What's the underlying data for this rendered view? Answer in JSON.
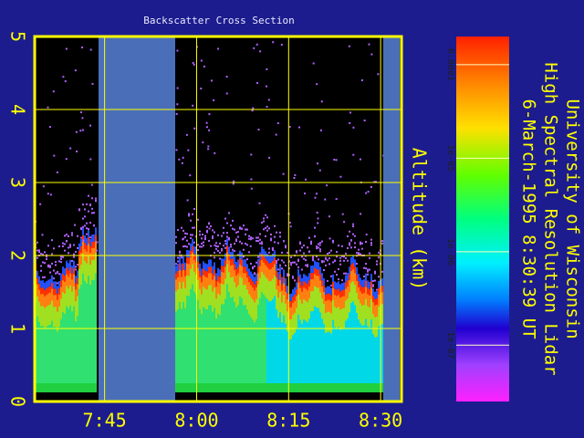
{
  "chart_data": {
    "type": "heatmap",
    "title": "Backscatter Cross Section",
    "ylabel": "Altitude (km)",
    "ylim": [
      0,
      5
    ],
    "yticks": [
      0,
      1,
      2,
      3,
      4,
      5
    ],
    "xlim": [
      453.6,
      513.4
    ],
    "xticks": [
      {
        "value": 465,
        "label": "7:45"
      },
      {
        "value": 480,
        "label": "8:00"
      },
      {
        "value": 495,
        "label": "8:15"
      },
      {
        "value": 510,
        "label": "8:30"
      }
    ],
    "grid": true,
    "colorbar": {
      "scale": "log",
      "clim": [
        0.0002,
        2.5e-08
      ],
      "ticks": [
        {
          "value": 0.0001,
          "label": "0.0001"
        },
        {
          "value": 1e-05,
          "label": "1e-05"
        },
        {
          "value": 1e-06,
          "label": "1e-06"
        },
        {
          "value": 1e-07,
          "label": "1e-07"
        }
      ]
    },
    "side_text": [
      "University of Wisconsin",
      "High Spectral Resolution Lidar",
      "6-March-1995  8:30:39 UT"
    ]
  }
}
